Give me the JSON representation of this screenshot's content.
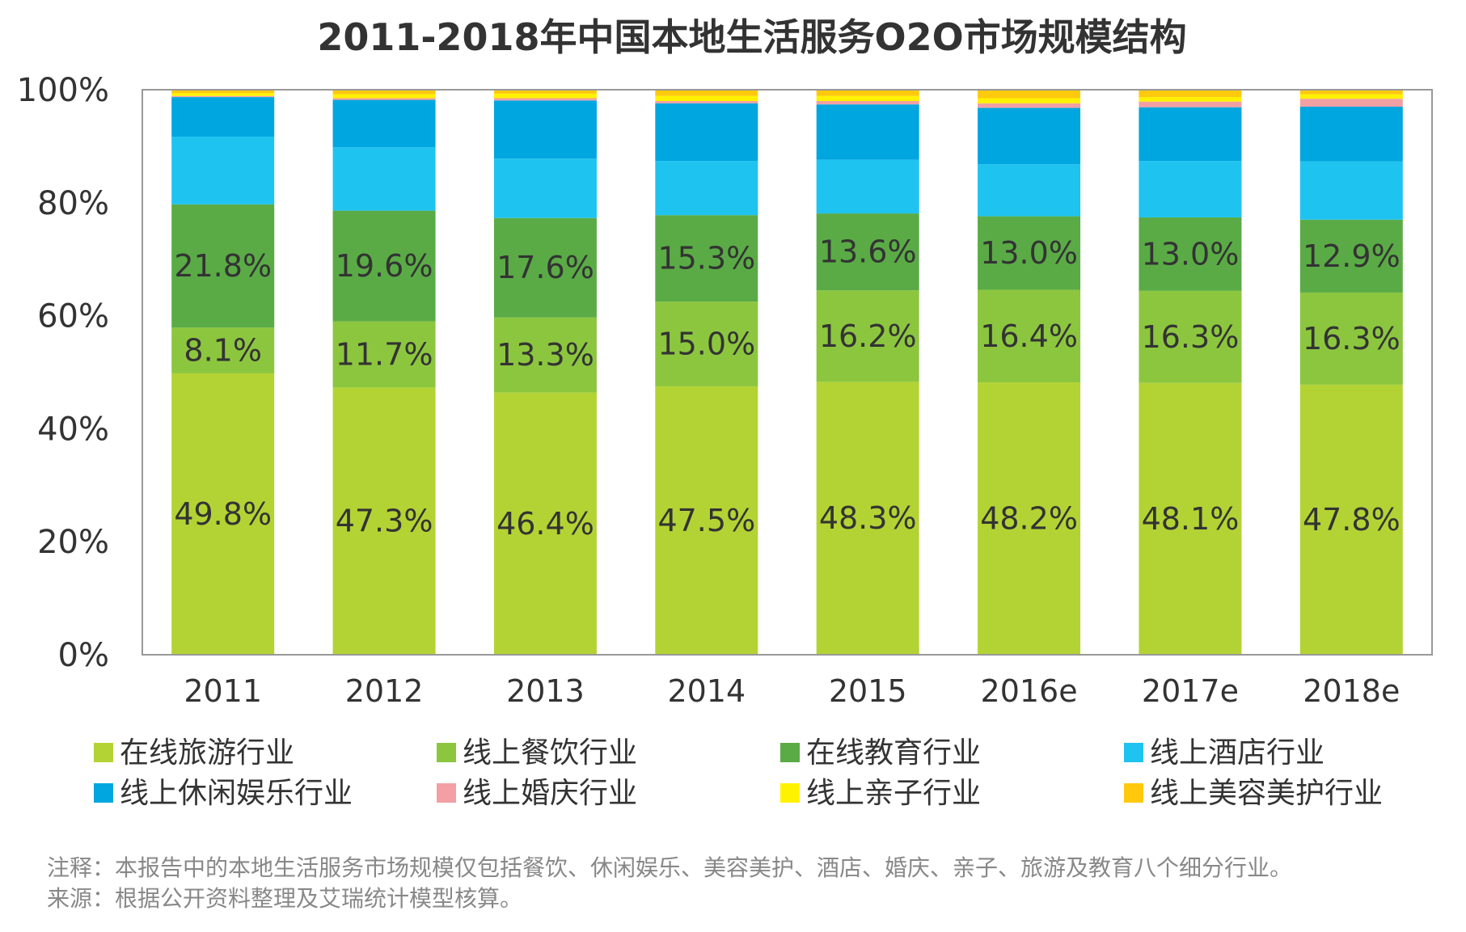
{
  "chart_data": {
    "type": "bar",
    "stacked": true,
    "percent_stacked": true,
    "title": "2011-2018年中国本地生活服务O2O市场规模结构",
    "xlabel": "",
    "ylabel": "",
    "ylim": [
      0,
      100
    ],
    "y_ticks": [
      "0%",
      "20%",
      "40%",
      "60%",
      "80%",
      "100%"
    ],
    "grid": false,
    "legend_position": "bottom",
    "categories": [
      "2011",
      "2012",
      "2013",
      "2014",
      "2015",
      "2016e",
      "2017e",
      "2018e"
    ],
    "series": [
      {
        "name": "在线旅游行业",
        "color": "#b3d334",
        "values": [
          49.8,
          47.3,
          46.4,
          47.5,
          48.3,
          48.2,
          48.1,
          47.8
        ],
        "labels": [
          "49.8%",
          "47.3%",
          "46.4%",
          "47.5%",
          "48.3%",
          "48.2%",
          "48.1%",
          "47.8%"
        ]
      },
      {
        "name": "线上餐饮行业",
        "color": "#8cc63f",
        "values": [
          8.1,
          11.7,
          13.3,
          15.0,
          16.2,
          16.4,
          16.3,
          16.3
        ],
        "labels": [
          "8.1%",
          "11.7%",
          "13.3%",
          "15.0%",
          "16.2%",
          "16.4%",
          "16.3%",
          "16.3%"
        ]
      },
      {
        "name": "在线教育行业",
        "color": "#5aab46",
        "values": [
          21.8,
          19.6,
          17.6,
          15.3,
          13.6,
          13.0,
          13.0,
          12.9
        ],
        "labels": [
          "21.8%",
          "19.6%",
          "17.6%",
          "15.3%",
          "13.6%",
          "13.0%",
          "13.0%",
          "12.9%"
        ]
      },
      {
        "name": "线上酒店行业",
        "color": "#1fc3ef",
        "values": [
          12.0,
          11.2,
          10.5,
          9.6,
          9.5,
          9.2,
          10.0,
          10.3
        ]
      },
      {
        "name": "线上休闲娱乐行业",
        "color": "#00a6df",
        "values": [
          7.0,
          8.4,
          10.3,
          10.2,
          9.8,
          10.0,
          9.5,
          9.7
        ]
      },
      {
        "name": "线上婚庆行业",
        "color": "#f2a0a3",
        "values": [
          0.2,
          0.3,
          0.4,
          0.4,
          0.6,
          0.8,
          1.0,
          1.4
        ]
      },
      {
        "name": "线上亲子行业",
        "color": "#fff200",
        "values": [
          0.5,
          0.7,
          0.8,
          0.9,
          0.9,
          0.9,
          0.8,
          0.8
        ]
      },
      {
        "name": "线上美容美护行业",
        "color": "#ffc90e",
        "values": [
          0.6,
          0.8,
          0.7,
          1.1,
          1.1,
          1.5,
          1.3,
          0.8
        ]
      }
    ]
  },
  "notes": {
    "note": "注释：本报告中的本地生活服务市场规模仅包括餐饮、休闲娱乐、美容美护、酒店、婚庆、亲子、旅游及教育八个细分行业。",
    "source": "来源：根据公开资料整理及艾瑞统计模型核算。"
  }
}
